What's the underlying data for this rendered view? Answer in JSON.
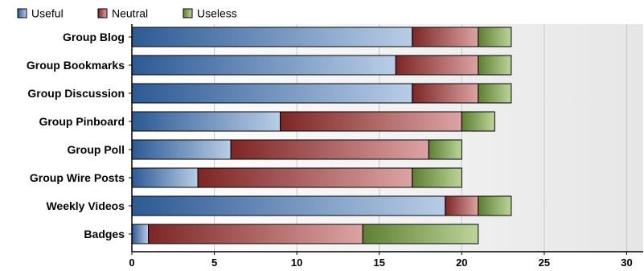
{
  "chart_data": {
    "type": "bar",
    "orientation": "horizontal",
    "stacked": true,
    "title": "",
    "xlabel": "",
    "ylabel": "",
    "categories": [
      "Group Blog",
      "Group Bookmarks",
      "Group Discussion",
      "Group Pinboard",
      "Group Poll",
      "Group Wire Posts",
      "Weekly Videos",
      "Badges"
    ],
    "series": [
      {
        "name": "Useful",
        "color": "#3a6aa8",
        "values": [
          17,
          16,
          17,
          9,
          6,
          4,
          19,
          1
        ]
      },
      {
        "name": "Neutral",
        "color": "#a83a3a",
        "values": [
          4,
          5,
          4,
          11,
          12,
          13,
          2,
          13
        ]
      },
      {
        "name": "Useless",
        "color": "#84a84e",
        "values": [
          2,
          2,
          2,
          2,
          2,
          3,
          2,
          7
        ]
      }
    ],
    "xlim": [
      0,
      31
    ],
    "ticks": [
      "0",
      "5",
      "10",
      "15",
      "20",
      "25",
      "30"
    ],
    "tick_values": [
      0,
      5,
      10,
      15,
      20,
      25,
      30
    ],
    "grid": true,
    "legend_position": "top-left"
  }
}
